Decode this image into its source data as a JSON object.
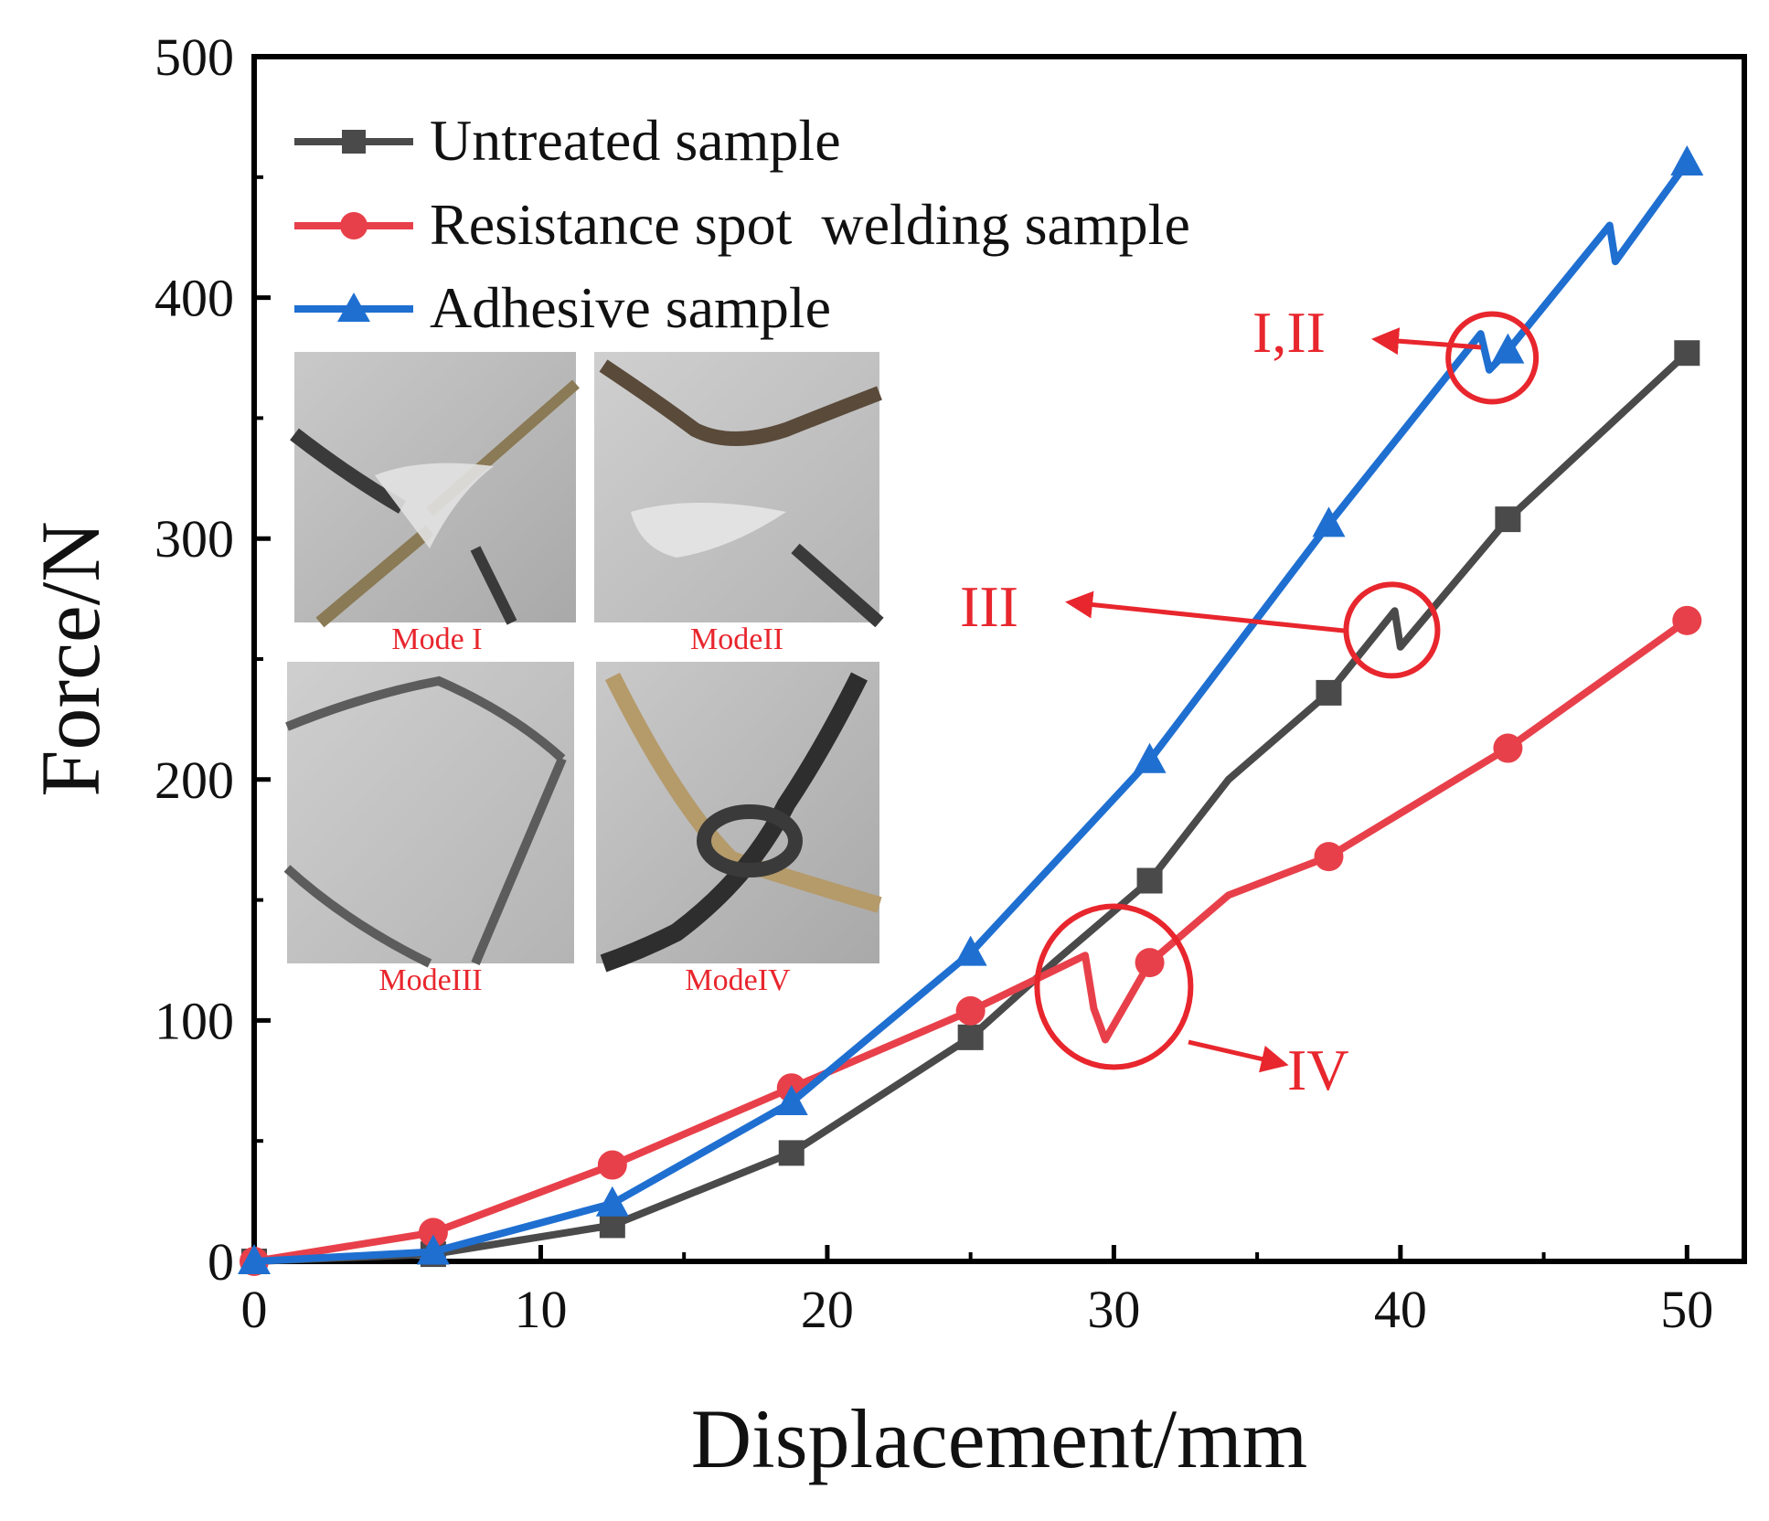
{
  "chart_data": {
    "type": "line",
    "xlabel": "Displacement/mm",
    "ylabel": "Force/N",
    "xlim": [
      0,
      52
    ],
    "ylim": [
      0,
      500
    ],
    "xticks": [
      0,
      10,
      20,
      30,
      40,
      50
    ],
    "yticks": [
      0,
      100,
      200,
      300,
      400,
      500
    ],
    "grid": false,
    "legend_position": "top-left",
    "series": [
      {
        "name": "Untreated sample",
        "color": "#4a4a4a",
        "marker": "square",
        "x": [
          0,
          6.25,
          12.5,
          18.75,
          25,
          28,
          31.25,
          34,
          37.5,
          39.8,
          40,
          43.75,
          50
        ],
        "y": [
          0,
          3,
          15,
          45,
          93,
          125,
          158,
          200,
          236,
          270,
          255,
          308,
          377
        ],
        "marker_x": [
          0,
          6.25,
          12.5,
          18.75,
          25,
          31.25,
          37.5,
          43.75,
          50
        ],
        "marker_y": [
          0,
          3,
          15,
          45,
          93,
          158,
          236,
          308,
          377
        ]
      },
      {
        "name": "Resistance spot  welding sample",
        "color": "#e8404a",
        "marker": "circle",
        "x": [
          0,
          6.25,
          12.5,
          18.75,
          25,
          29,
          29.3,
          29.7,
          31.25,
          34,
          37.5,
          43.75,
          50
        ],
        "y": [
          0,
          12,
          40,
          72,
          104,
          127,
          105,
          92,
          124,
          152,
          168,
          213,
          266
        ],
        "marker_x": [
          0,
          6.25,
          12.5,
          18.75,
          25,
          31.25,
          37.5,
          43.75,
          50
        ],
        "marker_y": [
          0,
          12,
          40,
          72,
          104,
          124,
          168,
          213,
          266
        ]
      },
      {
        "name": "Adhesive sample",
        "color": "#1f6fd1",
        "marker": "triangle",
        "x": [
          0,
          6.25,
          12.5,
          18.75,
          25,
          31.25,
          37.5,
          42.8,
          43.1,
          43.75,
          47.3,
          47.5,
          50
        ],
        "y": [
          0,
          4,
          24,
          66,
          128,
          208,
          306,
          385,
          370,
          378,
          430,
          415,
          456
        ],
        "marker_x": [
          0,
          6.25,
          12.5,
          18.75,
          25,
          31.25,
          37.5,
          43.75,
          50
        ],
        "marker_y": [
          0,
          4,
          24,
          66,
          128,
          208,
          306,
          378,
          456
        ]
      }
    ],
    "annotations": [
      {
        "text": "I,II",
        "circle_at": [
          43.2,
          375
        ]
      },
      {
        "text": "III",
        "circle_at": [
          39.7,
          262
        ]
      },
      {
        "text": "IV",
        "circle_at": [
          30,
          114
        ]
      }
    ],
    "inset_labels": [
      "Mode I",
      "ModeII",
      "ModeIII",
      "ModeIV"
    ]
  }
}
